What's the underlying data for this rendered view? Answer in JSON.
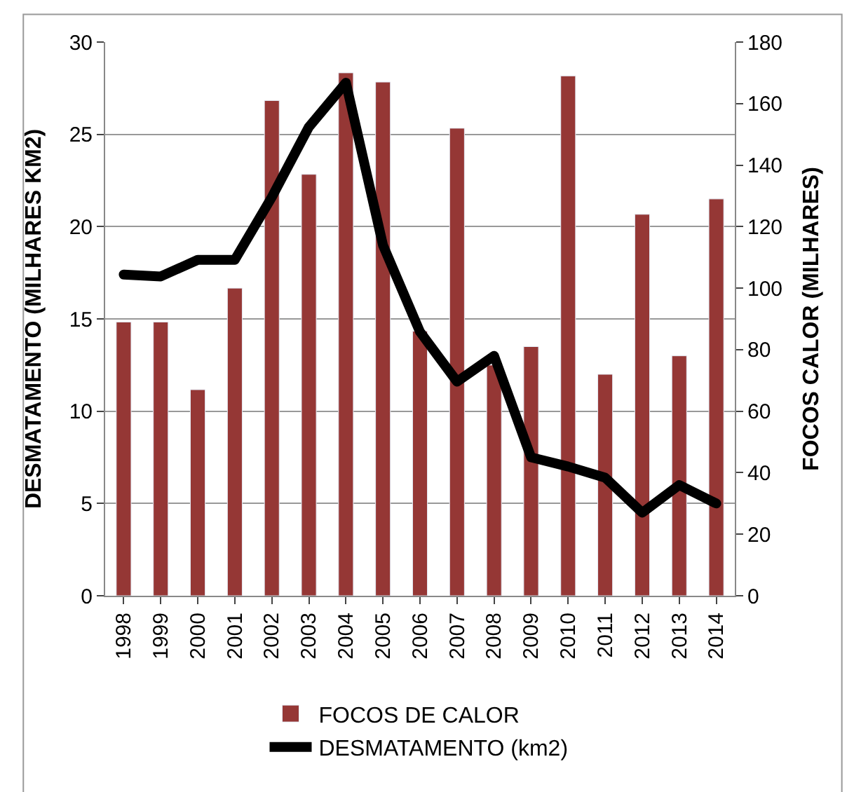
{
  "chart_data": {
    "type": "bar",
    "ylabel": "DESMATAMENTO (MILHARES KM2)",
    "y2label": "FOCOS CALOR (MILHARES)",
    "categories": [
      "1998",
      "1999",
      "2000",
      "2001",
      "2002",
      "2003",
      "2004",
      "2005",
      "2006",
      "2007",
      "2008",
      "2009",
      "2010",
      "2011",
      "2012",
      "2013",
      "2014"
    ],
    "series": [
      {
        "name": "FOCOS DE CALOR",
        "axis": "y2",
        "color": "#953735",
        "values": [
          89,
          89,
          67,
          100,
          161,
          137,
          170,
          167,
          86,
          152,
          75,
          81,
          169,
          72,
          124,
          78,
          129
        ]
      },
      {
        "name": "DESMATAMENTO (km2)",
        "type": "line",
        "axis": "y",
        "color": "#000000",
        "values": [
          17.4,
          17.3,
          18.2,
          18.2,
          21.6,
          25.4,
          27.8,
          19.0,
          14.3,
          11.6,
          13.0,
          7.5,
          7.0,
          6.4,
          4.5,
          6.0,
          5.0
        ]
      }
    ],
    "ylim": [
      0,
      30
    ],
    "yticks": [
      0,
      5,
      10,
      15,
      20,
      25,
      30
    ],
    "y2lim": [
      0,
      180
    ],
    "y2ticks": [
      0,
      20,
      40,
      60,
      80,
      100,
      120,
      140,
      160,
      180
    ],
    "grid": "y",
    "legend": "bottom",
    "line_style": "solid"
  }
}
